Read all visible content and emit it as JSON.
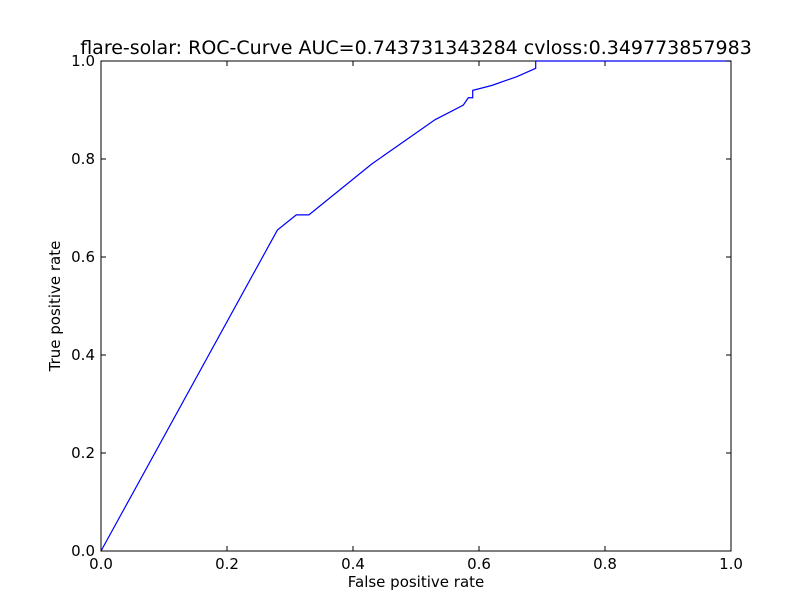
{
  "chart_data": {
    "type": "line",
    "title": "flare-solar: ROC-Curve AUC=0.743731343284 cvloss:0.349773857983",
    "xlabel": "False positive rate",
    "ylabel": "True positive rate",
    "xlim": [
      0.0,
      1.0
    ],
    "ylim": [
      0.0,
      1.0
    ],
    "xticks": [
      "0.0",
      "0.2",
      "0.4",
      "0.6",
      "0.8",
      "1.0"
    ],
    "yticks": [
      "0.0",
      "0.2",
      "0.4",
      "0.6",
      "0.8",
      "1.0"
    ],
    "grid": false,
    "legend": "none",
    "line_color": "#0000ff",
    "series": [
      {
        "x": [
          0.0,
          0.28,
          0.31,
          0.33,
          0.43,
          0.53,
          0.575,
          0.583,
          0.59,
          0.59,
          0.62,
          0.66,
          0.69,
          0.69,
          1.0
        ],
        "y": [
          0.0,
          0.655,
          0.686,
          0.686,
          0.79,
          0.88,
          0.91,
          0.925,
          0.925,
          0.94,
          0.95,
          0.968,
          0.985,
          1.0,
          1.0
        ]
      }
    ]
  }
}
